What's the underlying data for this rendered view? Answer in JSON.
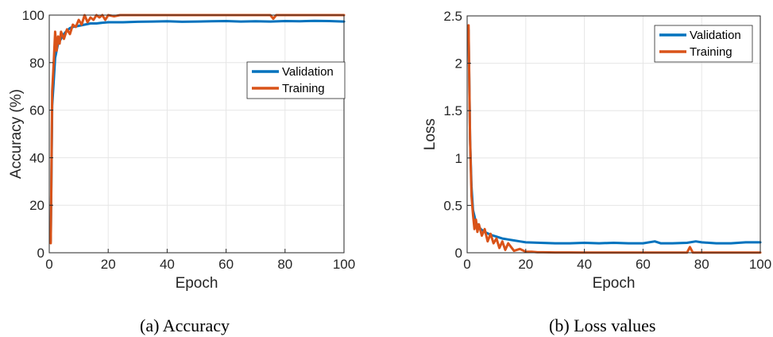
{
  "figures": {
    "a": {
      "caption": "(a)  Accuracy"
    },
    "b": {
      "caption": "(b) Loss values"
    }
  },
  "colors": {
    "validation": "#0072BD",
    "training": "#D95319",
    "grid": "#e6e6e6",
    "axis": "#262626"
  },
  "chart_data": [
    {
      "type": "line",
      "title": "",
      "xlabel": "Epoch",
      "ylabel": "Accuracy (%)",
      "xlim": [
        0,
        100
      ],
      "ylim": [
        0,
        100
      ],
      "xticks": [
        0,
        20,
        40,
        60,
        80,
        100
      ],
      "yticks": [
        0,
        20,
        40,
        60,
        80,
        100
      ],
      "grid": true,
      "legend": "upper-right",
      "series": [
        {
          "name": "Validation",
          "color": "#0072BD",
          "x": [
            0.5,
            1,
            1.5,
            2,
            3,
            4,
            5,
            6,
            7,
            8,
            10,
            12,
            14,
            16,
            18,
            20,
            25,
            30,
            35,
            40,
            45,
            50,
            55,
            60,
            65,
            70,
            75,
            80,
            85,
            90,
            95,
            100
          ],
          "y": [
            5,
            62,
            72,
            82,
            88,
            90,
            92,
            93.5,
            94.5,
            95,
            95.5,
            96,
            96.5,
            96.5,
            96.8,
            97,
            97,
            97.2,
            97.3,
            97.4,
            97.2,
            97.3,
            97.4,
            97.5,
            97.3,
            97.4,
            97.3,
            97.5,
            97.4,
            97.6,
            97.5,
            97.3
          ]
        },
        {
          "name": "Training",
          "color": "#D95319",
          "x": [
            0.5,
            1,
            1.5,
            2,
            2.5,
            3,
            3.5,
            4,
            5,
            6,
            7,
            8,
            9,
            10,
            11,
            12,
            13,
            14,
            15,
            16,
            17,
            18,
            19,
            20,
            22,
            24,
            26,
            28,
            30,
            35,
            40,
            45,
            50,
            55,
            60,
            65,
            70,
            75,
            76,
            77,
            78,
            80,
            85,
            90,
            95,
            100
          ],
          "y": [
            4,
            68,
            80,
            93,
            85,
            91,
            88,
            93,
            90,
            94,
            92,
            96,
            95,
            98,
            96,
            100,
            97,
            99,
            98,
            100,
            99,
            100,
            98,
            100,
            99.5,
            100,
            100,
            100,
            100,
            100,
            100,
            100,
            100,
            100,
            100,
            100,
            100,
            100,
            98.5,
            100,
            100,
            100,
            100,
            100,
            100,
            100
          ]
        }
      ]
    },
    {
      "type": "line",
      "title": "",
      "xlabel": "Epoch",
      "ylabel": "Loss",
      "xlim": [
        0,
        100
      ],
      "ylim": [
        0,
        2.5
      ],
      "xticks": [
        0,
        20,
        40,
        60,
        80,
        100
      ],
      "yticks": [
        0,
        0.5,
        1,
        1.5,
        2,
        2.5
      ],
      "grid": true,
      "legend": "upper-right",
      "series": [
        {
          "name": "Validation",
          "color": "#0072BD",
          "x": [
            0.5,
            1,
            1.5,
            2,
            3,
            4,
            5,
            6,
            8,
            10,
            12,
            14,
            16,
            18,
            20,
            25,
            30,
            35,
            40,
            45,
            50,
            55,
            60,
            64,
            66,
            70,
            75,
            78,
            80,
            85,
            90,
            95,
            100
          ],
          "y": [
            2.35,
            1.2,
            0.7,
            0.45,
            0.32,
            0.27,
            0.24,
            0.22,
            0.19,
            0.17,
            0.15,
            0.14,
            0.13,
            0.12,
            0.11,
            0.105,
            0.1,
            0.1,
            0.105,
            0.1,
            0.105,
            0.1,
            0.1,
            0.12,
            0.1,
            0.1,
            0.105,
            0.12,
            0.11,
            0.1,
            0.1,
            0.11,
            0.11
          ]
        },
        {
          "name": "Training",
          "color": "#D95319",
          "x": [
            0.5,
            1,
            1.5,
            2,
            2.5,
            3,
            3.5,
            4,
            5,
            6,
            7,
            8,
            9,
            10,
            11,
            12,
            13,
            14,
            15,
            16,
            18,
            20,
            22,
            24,
            26,
            28,
            30,
            35,
            40,
            45,
            50,
            55,
            60,
            65,
            70,
            75,
            76,
            77,
            78,
            80,
            85,
            90,
            95,
            100
          ],
          "y": [
            2.4,
            1.2,
            0.6,
            0.4,
            0.25,
            0.35,
            0.22,
            0.3,
            0.18,
            0.25,
            0.12,
            0.2,
            0.1,
            0.15,
            0.05,
            0.12,
            0.03,
            0.1,
            0.06,
            0.02,
            0.04,
            0.01,
            0.01,
            0.005,
            0.005,
            0.004,
            0.003,
            0.003,
            0.002,
            0.002,
            0.002,
            0.002,
            0.002,
            0.002,
            0.002,
            0.002,
            0.06,
            0.002,
            0.002,
            0.002,
            0.002,
            0.002,
            0.002,
            0.002
          ]
        }
      ]
    }
  ]
}
